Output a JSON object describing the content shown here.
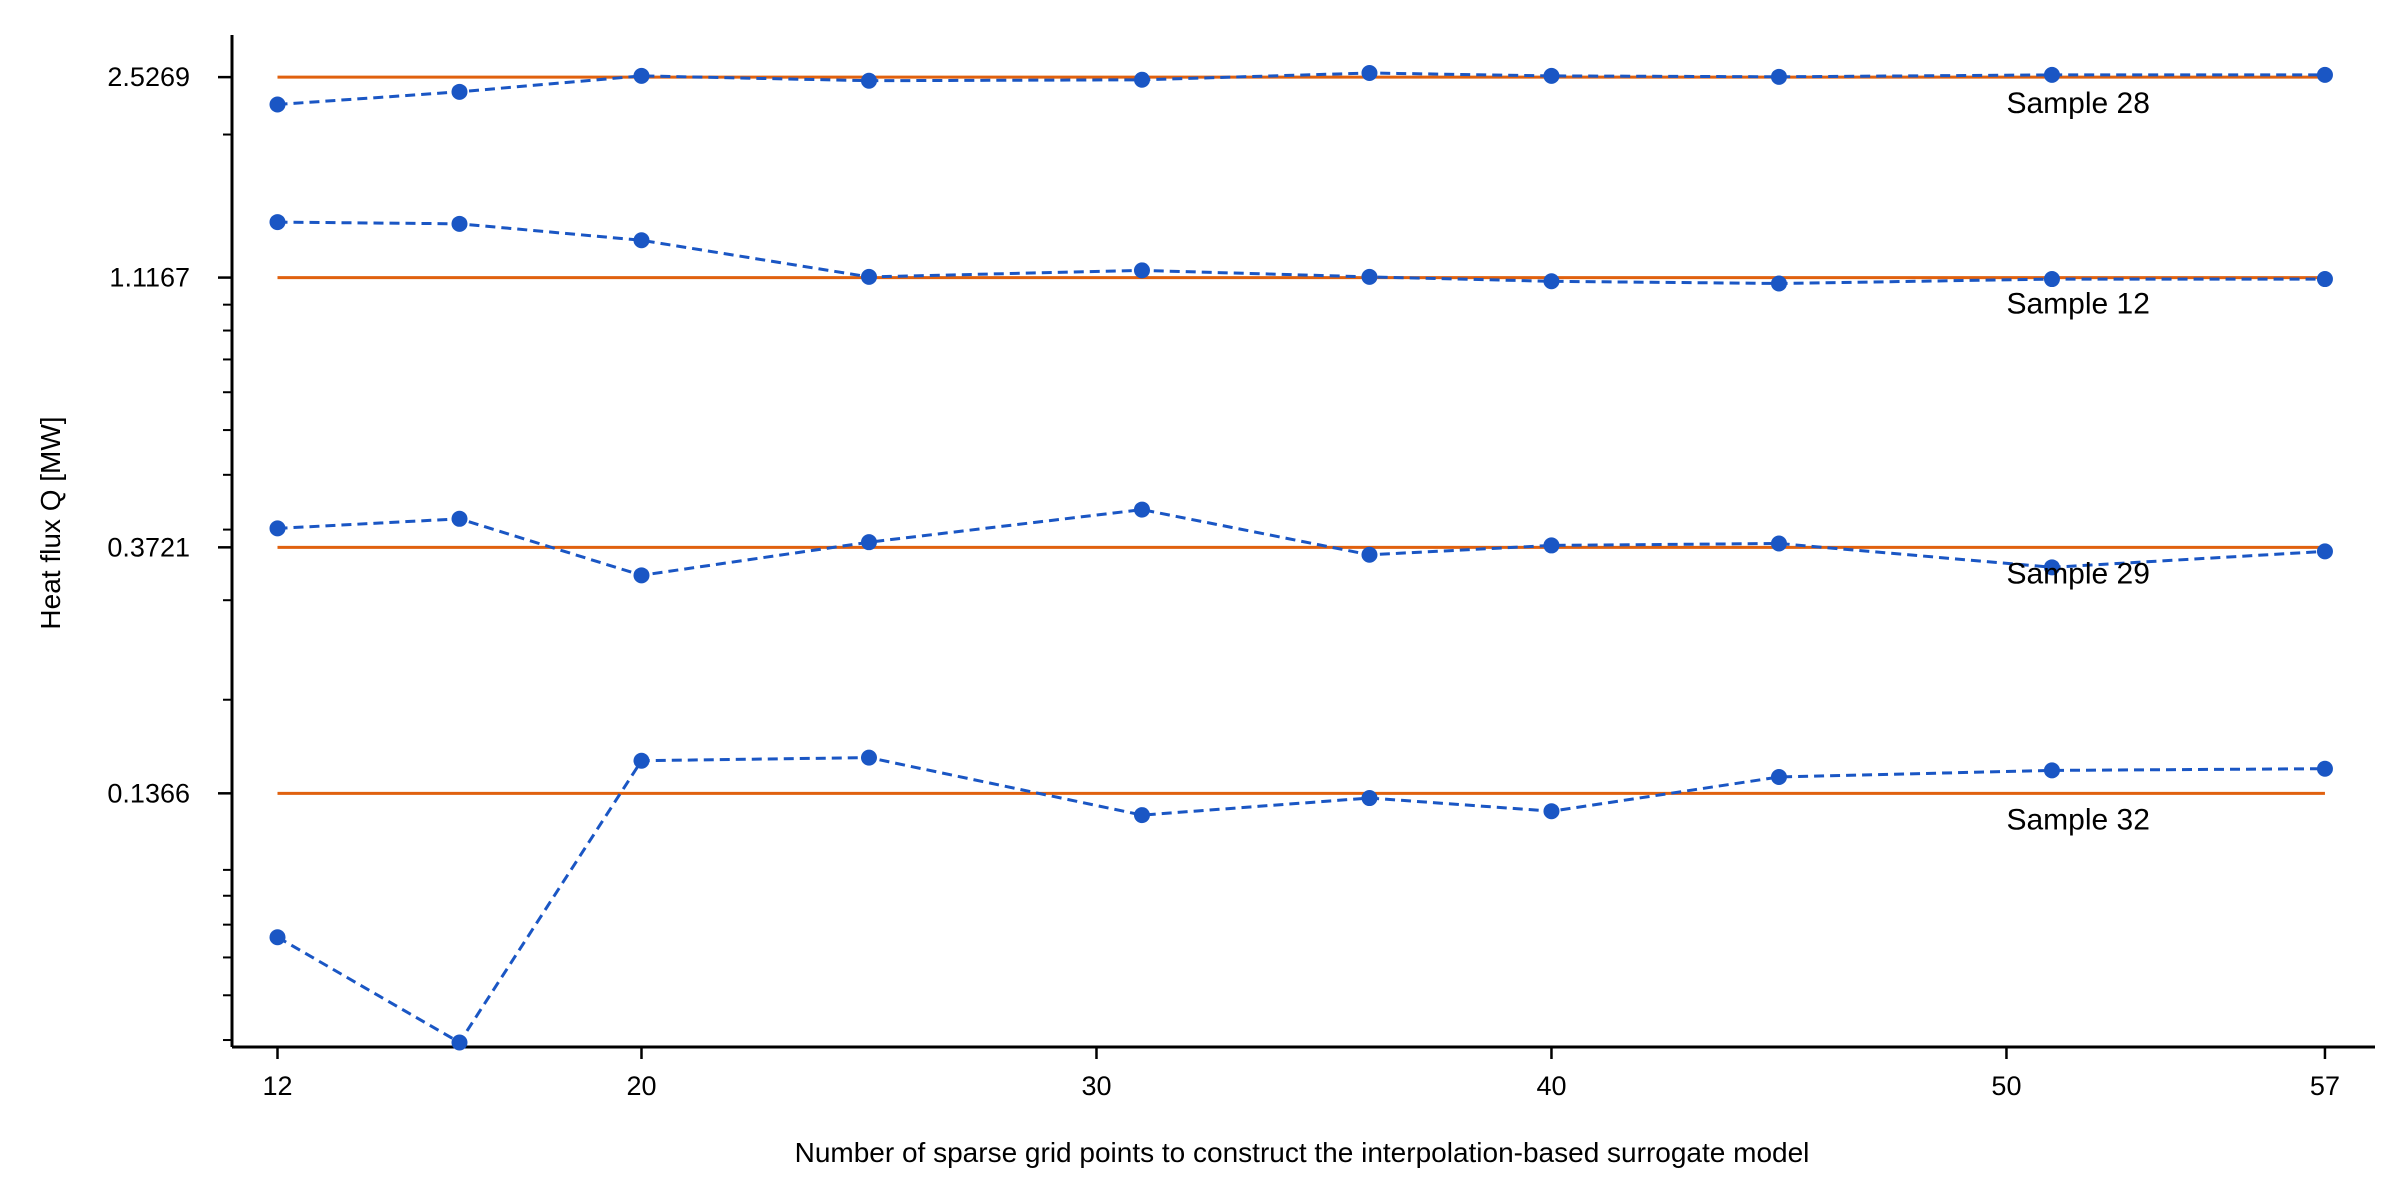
{
  "chart_data": {
    "type": "line",
    "xlabel": "Number of sparse grid points to construct the interpolation-based surrogate model",
    "ylabel": "Heat flux Q [MW]",
    "yscale": "log",
    "grid": false,
    "x_ticks": [
      12,
      20,
      30,
      40,
      50,
      57
    ],
    "y_ticks": [
      "2.5269",
      "1.1167",
      "0.3721",
      "0.1366"
    ],
    "xlim": [
      11,
      58.1
    ],
    "ylim": [
      0.0486,
      3.0
    ],
    "x": [
      12,
      16,
      20,
      25,
      31,
      36,
      40,
      45,
      51,
      57
    ],
    "series": [
      {
        "label": "Sample 28",
        "reference": 2.5269,
        "values": [
          2.26,
          2.38,
          2.54,
          2.49,
          2.5,
          2.57,
          2.54,
          2.53,
          2.55,
          2.55
        ]
      },
      {
        "label": "Sample 12",
        "reference": 1.1167,
        "values": [
          1.4,
          1.39,
          1.3,
          1.12,
          1.15,
          1.12,
          1.1,
          1.09,
          1.11,
          1.11
        ]
      },
      {
        "label": "Sample 29",
        "reference": 0.3721,
        "values": [
          0.402,
          0.418,
          0.332,
          0.38,
          0.434,
          0.361,
          0.375,
          0.378,
          0.343,
          0.366
        ]
      },
      {
        "label": "Sample 32",
        "reference": 0.1366,
        "values": [
          0.076,
          0.0495,
          0.156,
          0.158,
          0.125,
          0.134,
          0.127,
          0.146,
          0.15,
          0.151
        ]
      }
    ],
    "colors": {
      "surrogate": "#1a56c4",
      "reference": "#e0610e",
      "axis": "#000000"
    }
  }
}
